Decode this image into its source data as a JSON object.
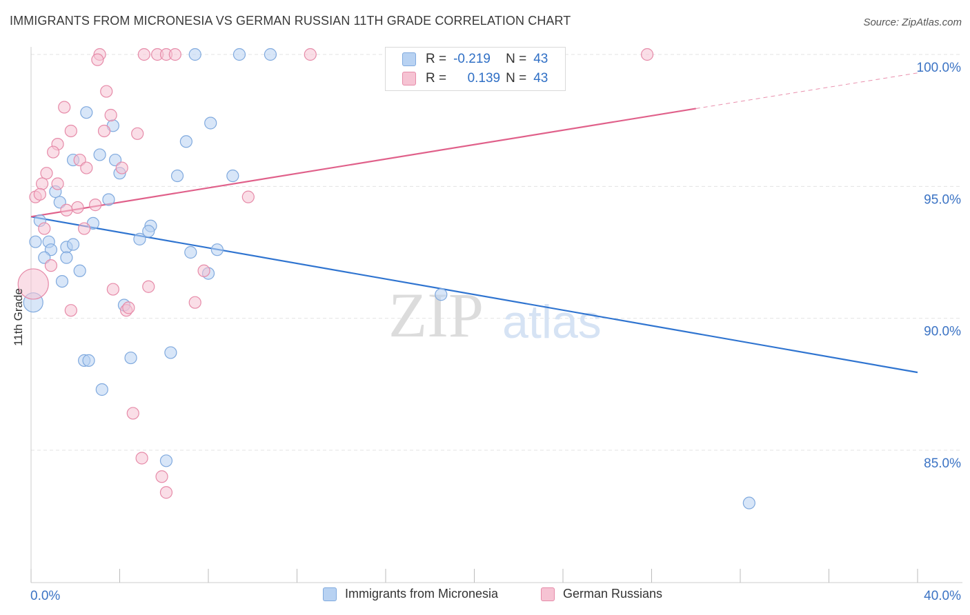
{
  "title": "IMMIGRANTS FROM MICRONESIA VS GERMAN RUSSIAN 11TH GRADE CORRELATION CHART",
  "source": "Source: ZipAtlas.com",
  "watermark": {
    "zip": "ZIP",
    "atlas": "atlas"
  },
  "legend": {
    "row1": {
      "r_label": "R =",
      "r_value": "-0.219",
      "n_label": "N =",
      "n_value": "43"
    },
    "row2": {
      "r_label": "R =",
      "r_value": "0.139",
      "n_label": "N =",
      "n_value": "43"
    }
  },
  "bottom_legend": {
    "series1": "Immigrants from Micronesia",
    "series2": "German Russians"
  },
  "colors": {
    "blue_fill": "#b8d2f2",
    "blue_stroke": "#7fa9de",
    "blue_line": "#2f74d0",
    "pink_fill": "#f6c3d3",
    "pink_stroke": "#e68aa8",
    "pink_line": "#e0608a",
    "tick_label": "#3b73c4"
  },
  "chart_data": {
    "type": "scatter",
    "title": "IMMIGRANTS FROM MICRONESIA VS GERMAN RUSSIAN 11TH GRADE CORRELATION CHART",
    "ylabel": "11th Grade",
    "xlabel": "",
    "xlim": [
      0,
      40
    ],
    "ylim": [
      80.0,
      100.8
    ],
    "x_tick_labels": [
      "0.0%",
      "40.0%"
    ],
    "y_tick_labels": [
      "100.0%",
      "95.0%",
      "90.0%",
      "85.0%"
    ],
    "y_ticks": [
      100,
      95,
      90,
      85
    ],
    "series": [
      {
        "name": "Immigrants from Micronesia",
        "color": "blue",
        "trend": {
          "x0": 0,
          "y0": 93.85,
          "x1": 40,
          "y1": 87.95
        },
        "points": [
          [
            7.4,
            100.0
          ],
          [
            9.4,
            100.0
          ],
          [
            10.8,
            100.0
          ],
          [
            2.5,
            97.8
          ],
          [
            3.7,
            97.3
          ],
          [
            8.1,
            97.4
          ],
          [
            7.0,
            96.7
          ],
          [
            3.1,
            96.2
          ],
          [
            1.9,
            96.0
          ],
          [
            3.8,
            96.0
          ],
          [
            4.0,
            95.5
          ],
          [
            6.6,
            95.4
          ],
          [
            9.1,
            95.4
          ],
          [
            1.1,
            94.8
          ],
          [
            1.3,
            94.4
          ],
          [
            3.5,
            94.5
          ],
          [
            0.4,
            93.7
          ],
          [
            2.8,
            93.6
          ],
          [
            5.4,
            93.5
          ],
          [
            5.3,
            93.3
          ],
          [
            4.9,
            93.0
          ],
          [
            0.2,
            92.9
          ],
          [
            0.8,
            92.9
          ],
          [
            1.6,
            92.7
          ],
          [
            1.9,
            92.8
          ],
          [
            0.9,
            92.6
          ],
          [
            8.4,
            92.6
          ],
          [
            0.6,
            92.3
          ],
          [
            1.6,
            92.3
          ],
          [
            7.2,
            92.5
          ],
          [
            2.2,
            91.8
          ],
          [
            8.0,
            91.7
          ],
          [
            1.4,
            91.4
          ],
          [
            18.5,
            90.9
          ],
          [
            0.1,
            90.6
          ],
          [
            4.2,
            90.5
          ],
          [
            2.4,
            88.4
          ],
          [
            2.6,
            88.4
          ],
          [
            4.5,
            88.5
          ],
          [
            6.3,
            88.7
          ],
          [
            3.2,
            87.3
          ],
          [
            6.1,
            84.6
          ],
          [
            32.4,
            83.0
          ]
        ]
      },
      {
        "name": "German Russians",
        "color": "pink",
        "trend": {
          "x0": 0,
          "y0": 93.85,
          "x1": 30.0,
          "y1": 97.95,
          "x2": 40,
          "y2": 99.3
        },
        "points": [
          [
            3.1,
            100.0
          ],
          [
            5.1,
            100.0
          ],
          [
            5.7,
            100.0
          ],
          [
            6.1,
            100.0
          ],
          [
            6.5,
            100.0
          ],
          [
            12.6,
            100.0
          ],
          [
            27.8,
            100.0
          ],
          [
            3.0,
            99.8
          ],
          [
            3.4,
            98.6
          ],
          [
            1.5,
            98.0
          ],
          [
            3.6,
            97.7
          ],
          [
            3.3,
            97.1
          ],
          [
            1.8,
            97.1
          ],
          [
            4.8,
            97.0
          ],
          [
            1.2,
            96.6
          ],
          [
            1.0,
            96.3
          ],
          [
            2.2,
            96.0
          ],
          [
            2.5,
            95.7
          ],
          [
            4.1,
            95.7
          ],
          [
            0.7,
            95.5
          ],
          [
            0.5,
            95.1
          ],
          [
            1.2,
            95.1
          ],
          [
            0.2,
            94.6
          ],
          [
            0.4,
            94.7
          ],
          [
            9.8,
            94.6
          ],
          [
            2.1,
            94.2
          ],
          [
            2.9,
            94.3
          ],
          [
            1.6,
            94.1
          ],
          [
            0.6,
            93.4
          ],
          [
            2.4,
            93.4
          ],
          [
            0.9,
            92.0
          ],
          [
            7.8,
            91.8
          ],
          [
            0.1,
            91.3
          ],
          [
            3.7,
            91.1
          ],
          [
            5.3,
            91.2
          ],
          [
            7.4,
            90.6
          ],
          [
            4.3,
            90.3
          ],
          [
            4.4,
            90.4
          ],
          [
            1.8,
            90.3
          ],
          [
            4.6,
            86.4
          ],
          [
            5.0,
            84.7
          ],
          [
            5.9,
            84.0
          ],
          [
            6.1,
            83.4
          ]
        ]
      }
    ]
  }
}
